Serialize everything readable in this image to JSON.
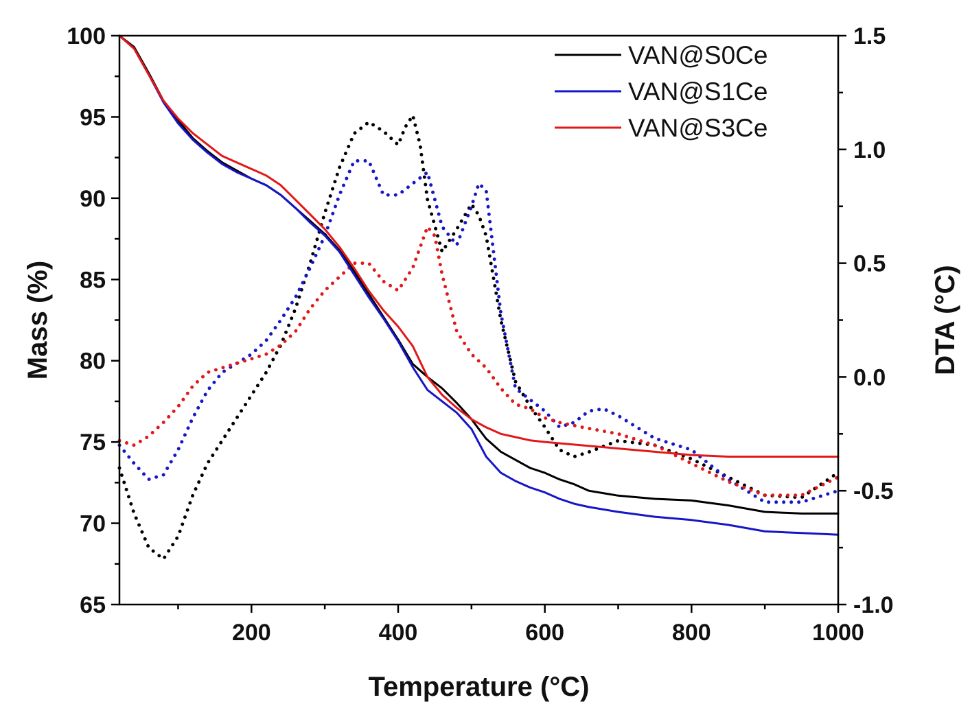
{
  "chart_data": {
    "type": "line",
    "title": "",
    "xlabel": "Temperature (°C)",
    "ylabel": "Mass (%)",
    "y2label": "DTA (°C)",
    "xlim": [
      20,
      1000
    ],
    "ylim": [
      65,
      100
    ],
    "y2lim": [
      -1.0,
      1.5
    ],
    "x_ticks": [
      200,
      400,
      600,
      800,
      1000
    ],
    "x_tick_labels": [
      "200",
      "400",
      "600",
      "800",
      "1000"
    ],
    "y_ticks": [
      65,
      70,
      75,
      80,
      85,
      90,
      95,
      100
    ],
    "y_tick_labels": [
      "65",
      "70",
      "75",
      "80",
      "85",
      "90",
      "95",
      "100"
    ],
    "y2_ticks": [
      -1.0,
      -0.5,
      0.0,
      0.5,
      1.0,
      1.5
    ],
    "y2_tick_labels": [
      "-1.0",
      "-0.5",
      "0.0",
      "0.5",
      "1.0",
      "1.5"
    ],
    "grid": false,
    "legend_position": "top-right",
    "legend": [
      "VAN@S0Ce",
      "VAN@S1Ce",
      "VAN@S3Ce"
    ],
    "series": [
      {
        "name": "VAN@S0Ce",
        "color": "#000000",
        "axis": "left",
        "style": "solid",
        "legend": true,
        "x": [
          20,
          40,
          60,
          80,
          100,
          120,
          140,
          160,
          180,
          200,
          220,
          240,
          260,
          280,
          300,
          320,
          340,
          360,
          380,
          400,
          420,
          440,
          460,
          480,
          500,
          520,
          540,
          560,
          580,
          600,
          620,
          640,
          660,
          700,
          750,
          800,
          850,
          900,
          950,
          1000
        ],
        "values": [
          100,
          99.3,
          97.7,
          96.0,
          94.8,
          93.7,
          92.9,
          92.2,
          91.7,
          91.2,
          90.8,
          90.2,
          89.4,
          88.6,
          87.8,
          86.8,
          85.5,
          84.1,
          82.7,
          81.3,
          79.8,
          79.0,
          78.3,
          77.4,
          76.4,
          75.2,
          74.4,
          73.9,
          73.4,
          73.1,
          72.7,
          72.4,
          72.0,
          71.7,
          71.5,
          71.4,
          71.1,
          70.7,
          70.6,
          70.6
        ]
      },
      {
        "name": "VAN@S1Ce",
        "color": "#1616c8",
        "axis": "left",
        "style": "solid",
        "legend": true,
        "x": [
          20,
          40,
          60,
          80,
          100,
          120,
          140,
          160,
          180,
          200,
          220,
          240,
          260,
          280,
          300,
          320,
          340,
          360,
          380,
          400,
          420,
          440,
          460,
          480,
          500,
          520,
          540,
          560,
          580,
          600,
          620,
          640,
          660,
          700,
          750,
          800,
          850,
          900,
          950,
          1000
        ],
        "values": [
          100,
          99.2,
          97.6,
          95.9,
          94.6,
          93.6,
          92.8,
          92.1,
          91.6,
          91.2,
          90.8,
          90.2,
          89.4,
          88.5,
          87.7,
          86.7,
          85.3,
          83.9,
          82.6,
          81.2,
          79.6,
          78.2,
          77.5,
          76.8,
          75.8,
          74.1,
          73.1,
          72.6,
          72.2,
          71.9,
          71.5,
          71.2,
          71.0,
          70.7,
          70.4,
          70.2,
          69.9,
          69.5,
          69.4,
          69.3
        ]
      },
      {
        "name": "VAN@S3Ce",
        "color": "#e21818",
        "axis": "left",
        "style": "solid",
        "legend": true,
        "x": [
          20,
          40,
          60,
          80,
          100,
          120,
          140,
          160,
          180,
          200,
          220,
          240,
          260,
          280,
          300,
          320,
          340,
          360,
          380,
          400,
          420,
          440,
          460,
          480,
          500,
          520,
          540,
          560,
          580,
          600,
          650,
          700,
          750,
          800,
          850,
          900,
          950,
          1000
        ],
        "values": [
          100,
          99.2,
          97.6,
          96.0,
          94.9,
          94.0,
          93.3,
          92.6,
          92.2,
          91.8,
          91.4,
          90.8,
          89.9,
          89.0,
          88.1,
          87.0,
          85.7,
          84.3,
          83.1,
          82.1,
          80.9,
          79.0,
          77.9,
          77.1,
          76.4,
          75.9,
          75.5,
          75.3,
          75.1,
          75.0,
          74.8,
          74.6,
          74.4,
          74.2,
          74.1,
          74.1,
          74.1,
          74.1
        ]
      },
      {
        "name": "VAN@S0Ce DTA",
        "color": "#000000",
        "axis": "right",
        "style": "dotted",
        "legend": false,
        "x": [
          20,
          40,
          60,
          80,
          100,
          120,
          140,
          160,
          180,
          200,
          220,
          240,
          260,
          280,
          300,
          320,
          340,
          360,
          380,
          400,
          410,
          420,
          430,
          440,
          460,
          480,
          500,
          510,
          520,
          540,
          560,
          580,
          600,
          620,
          640,
          660,
          700,
          750,
          800,
          850,
          900,
          950,
          1000
        ],
        "values": [
          -0.4,
          -0.6,
          -0.75,
          -0.8,
          -0.7,
          -0.52,
          -0.38,
          -0.28,
          -0.18,
          -0.08,
          0.02,
          0.14,
          0.3,
          0.5,
          0.72,
          0.92,
          1.07,
          1.12,
          1.08,
          1.02,
          1.1,
          1.15,
          1.02,
          0.78,
          0.55,
          0.65,
          0.76,
          0.71,
          0.62,
          0.25,
          -0.02,
          -0.13,
          -0.22,
          -0.32,
          -0.35,
          -0.33,
          -0.28,
          -0.3,
          -0.36,
          -0.44,
          -0.52,
          -0.53,
          -0.42
        ]
      },
      {
        "name": "VAN@S1Ce DTA",
        "color": "#1616c8",
        "axis": "right",
        "style": "dotted",
        "legend": false,
        "x": [
          20,
          40,
          60,
          80,
          100,
          120,
          140,
          160,
          180,
          200,
          220,
          240,
          260,
          280,
          300,
          320,
          340,
          360,
          380,
          400,
          420,
          440,
          460,
          480,
          500,
          510,
          520,
          540,
          560,
          580,
          600,
          620,
          640,
          660,
          680,
          700,
          750,
          800,
          850,
          900,
          950,
          1000
        ],
        "values": [
          -0.3,
          -0.38,
          -0.45,
          -0.43,
          -0.32,
          -0.18,
          -0.06,
          0.02,
          0.06,
          0.1,
          0.16,
          0.25,
          0.35,
          0.48,
          0.62,
          0.8,
          0.95,
          0.95,
          0.8,
          0.8,
          0.85,
          0.9,
          0.66,
          0.58,
          0.75,
          0.85,
          0.82,
          0.28,
          -0.05,
          -0.1,
          -0.15,
          -0.22,
          -0.2,
          -0.15,
          -0.14,
          -0.17,
          -0.27,
          -0.32,
          -0.45,
          -0.55,
          -0.55,
          -0.5
        ]
      },
      {
        "name": "VAN@S3Ce DTA",
        "color": "#e21818",
        "axis": "right",
        "style": "dotted",
        "legend": false,
        "x": [
          20,
          40,
          60,
          80,
          100,
          120,
          140,
          160,
          180,
          200,
          220,
          240,
          260,
          280,
          300,
          320,
          340,
          360,
          380,
          400,
          420,
          440,
          450,
          460,
          480,
          500,
          520,
          540,
          560,
          580,
          600,
          620,
          650,
          700,
          750,
          800,
          850,
          900,
          950,
          1000
        ],
        "values": [
          -0.28,
          -0.3,
          -0.26,
          -0.2,
          -0.13,
          -0.04,
          0.02,
          0.04,
          0.06,
          0.08,
          0.1,
          0.14,
          0.2,
          0.3,
          0.38,
          0.44,
          0.5,
          0.5,
          0.42,
          0.38,
          0.48,
          0.66,
          0.62,
          0.45,
          0.2,
          0.1,
          0.04,
          -0.05,
          -0.12,
          -0.14,
          -0.18,
          -0.2,
          -0.22,
          -0.25,
          -0.3,
          -0.38,
          -0.46,
          -0.52,
          -0.52,
          -0.44
        ]
      }
    ]
  }
}
